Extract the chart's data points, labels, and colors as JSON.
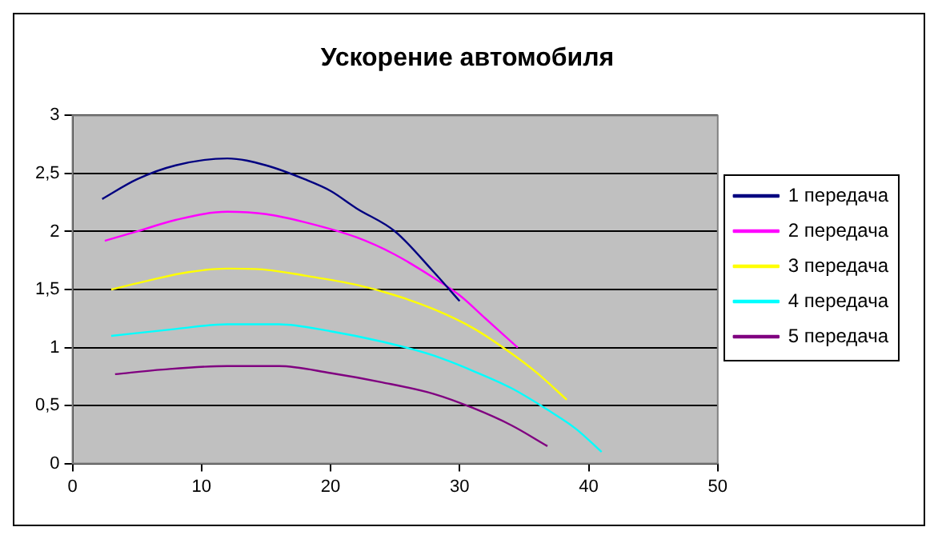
{
  "chart_data": {
    "type": "line",
    "title": "Ускорение автомобиля",
    "xlim": [
      0,
      50
    ],
    "xticks": [
      0,
      10,
      20,
      30,
      40,
      50
    ],
    "ylim": [
      0,
      3
    ],
    "yticks": [
      {
        "value": 0,
        "label": "0"
      },
      {
        "value": 0.5,
        "label": "0,5"
      },
      {
        "value": 1,
        "label": "1"
      },
      {
        "value": 1.5,
        "label": "1,5"
      },
      {
        "value": 2,
        "label": "2"
      },
      {
        "value": 2.5,
        "label": "2,5"
      },
      {
        "value": 3,
        "label": "3"
      }
    ],
    "grid": "y",
    "legend": "right",
    "marker": "none",
    "line_style": "solid",
    "series": [
      {
        "name": "1 передача",
        "color": "#000080",
        "x": [
          2.3,
          5,
          8,
          12,
          15,
          18,
          20,
          22,
          25,
          28,
          30
        ],
        "values": [
          2.28,
          2.45,
          2.57,
          2.63,
          2.57,
          2.45,
          2.35,
          2.2,
          2,
          1.65,
          1.4
        ]
      },
      {
        "name": "2 передача",
        "color": "#ff00ff",
        "x": [
          2.5,
          5,
          8,
          12,
          15,
          18,
          22,
          25,
          28,
          30,
          32,
          34.5
        ],
        "values": [
          1.92,
          2,
          2.1,
          2.17,
          2.15,
          2.08,
          1.95,
          1.8,
          1.6,
          1.45,
          1.25,
          1
        ]
      },
      {
        "name": "3 передача",
        "color": "#ffff00",
        "x": [
          3,
          6,
          9,
          12,
          15,
          18,
          22,
          25,
          28,
          31,
          34,
          36,
          38.3
        ],
        "values": [
          1.5,
          1.58,
          1.65,
          1.68,
          1.67,
          1.62,
          1.54,
          1.45,
          1.33,
          1.17,
          0.95,
          0.78,
          0.55
        ]
      },
      {
        "name": "4 передача",
        "color": "#00ffff",
        "x": [
          3,
          8,
          12,
          16,
          20,
          24,
          28,
          31,
          34,
          37,
          39,
          41
        ],
        "values": [
          1.1,
          1.16,
          1.2,
          1.2,
          1.14,
          1.05,
          0.93,
          0.8,
          0.65,
          0.45,
          0.3,
          0.1
        ]
      },
      {
        "name": "5 передача",
        "color": "#800080",
        "x": [
          3.3,
          7,
          12,
          16,
          20,
          24,
          28,
          31,
          34,
          36.8
        ],
        "values": [
          0.77,
          0.81,
          0.84,
          0.84,
          0.78,
          0.7,
          0.6,
          0.48,
          0.33,
          0.15
        ]
      }
    ]
  }
}
